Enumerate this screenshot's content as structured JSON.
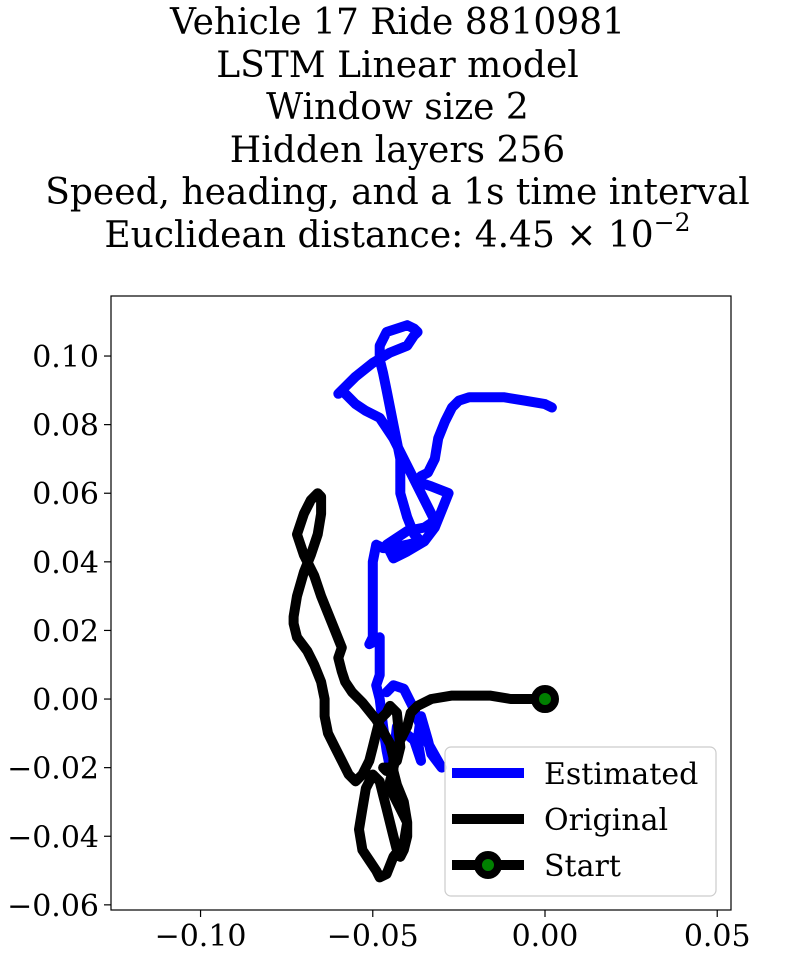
{
  "title": {
    "line1": "Vehicle 17 Ride 8810981",
    "line2": "LSTM Linear model",
    "line3": "Window size 2",
    "line4": "Hidden layers 256",
    "line5": "Speed, heading, and a 1s time interval",
    "line6_prefix": "Euclidean distance: 4.45 × 10",
    "line6_exponent": "−2"
  },
  "chart_data": {
    "type": "line",
    "xlim": [
      -0.126,
      0.054
    ],
    "ylim": [
      -0.0615,
      0.1175
    ],
    "xticks": [
      -0.1,
      -0.05,
      0.0,
      0.05
    ],
    "xtick_labels": [
      "−0.10",
      "−0.05",
      "0.00",
      "0.05"
    ],
    "yticks": [
      -0.06,
      -0.04,
      -0.02,
      0.0,
      0.02,
      0.04,
      0.06,
      0.08,
      0.1
    ],
    "ytick_labels": [
      "−0.06",
      "−0.04",
      "−0.02",
      "0.00",
      "0.02",
      "0.04",
      "0.06",
      "0.08",
      "0.10"
    ],
    "grid": false,
    "legend_position": "lower-right",
    "series": [
      {
        "name": "Estimated",
        "color": "#0000ff",
        "x": [
          0.002,
          0.0,
          -0.006,
          -0.012,
          -0.017,
          -0.022,
          -0.025,
          -0.027,
          -0.029,
          -0.031,
          -0.032,
          -0.034,
          -0.036,
          -0.037,
          -0.036,
          -0.033,
          -0.028,
          -0.03,
          -0.032,
          -0.035,
          -0.04,
          -0.044,
          -0.046,
          -0.04,
          -0.035,
          -0.032,
          -0.036,
          -0.04,
          -0.044,
          -0.048,
          -0.052,
          -0.055,
          -0.057,
          -0.059,
          -0.06,
          -0.058,
          -0.055,
          -0.05,
          -0.045,
          -0.04,
          -0.038,
          -0.037,
          -0.038,
          -0.04,
          -0.046,
          -0.048,
          -0.048,
          -0.047,
          -0.046,
          -0.044,
          -0.042,
          -0.042,
          -0.04,
          -0.038,
          -0.036,
          -0.04,
          -0.045,
          -0.047,
          -0.049,
          -0.05,
          -0.05,
          -0.05,
          -0.05,
          -0.051,
          -0.049,
          -0.048,
          -0.048,
          -0.048,
          -0.049,
          -0.048,
          -0.047,
          -0.046,
          -0.045,
          -0.044,
          -0.043,
          -0.038,
          -0.036,
          -0.037,
          -0.036,
          -0.034,
          -0.033,
          -0.03,
          -0.035,
          -0.038,
          -0.041,
          -0.044,
          -0.046
        ],
        "y": [
          0.085,
          0.086,
          0.087,
          0.088,
          0.088,
          0.088,
          0.087,
          0.085,
          0.081,
          0.076,
          0.07,
          0.066,
          0.065,
          0.064,
          0.063,
          0.062,
          0.06,
          0.055,
          0.05,
          0.046,
          0.043,
          0.041,
          0.045,
          0.049,
          0.05,
          0.052,
          0.06,
          0.068,
          0.076,
          0.082,
          0.084,
          0.086,
          0.088,
          0.09,
          0.089,
          0.091,
          0.094,
          0.098,
          0.101,
          0.103,
          0.106,
          0.107,
          0.108,
          0.109,
          0.107,
          0.103,
          0.099,
          0.095,
          0.09,
          0.08,
          0.07,
          0.06,
          0.053,
          0.048,
          0.046,
          0.045,
          0.044,
          0.044,
          0.045,
          0.04,
          0.03,
          0.024,
          0.018,
          0.016,
          0.017,
          0.018,
          0.012,
          0.007,
          0.004,
          0.0,
          -0.008,
          -0.015,
          -0.02,
          -0.017,
          -0.008,
          -0.012,
          -0.018,
          -0.012,
          -0.005,
          -0.012,
          -0.016,
          -0.02,
          -0.011,
          -0.003,
          0.003,
          0.004,
          0.002
        ]
      },
      {
        "name": "Original",
        "color": "#000000",
        "x": [
          0.0,
          -0.004,
          -0.01,
          -0.016,
          -0.021,
          -0.027,
          -0.033,
          -0.037,
          -0.039,
          -0.04,
          -0.042,
          -0.043,
          -0.044,
          -0.045,
          -0.044,
          -0.042,
          -0.04,
          -0.04,
          -0.041,
          -0.042,
          -0.043,
          -0.044,
          -0.045,
          -0.046,
          -0.047,
          -0.048,
          -0.05,
          -0.052,
          -0.053,
          -0.054,
          -0.053,
          -0.051,
          -0.049,
          -0.048,
          -0.046,
          -0.044,
          -0.041,
          -0.04,
          -0.041,
          -0.043,
          -0.044,
          -0.044,
          -0.045,
          -0.049,
          -0.053,
          -0.056,
          -0.058,
          -0.059,
          -0.06,
          -0.059,
          -0.061,
          -0.063,
          -0.065,
          -0.067,
          -0.07,
          -0.072,
          -0.07,
          -0.068,
          -0.066,
          -0.065,
          -0.065,
          -0.066,
          -0.068,
          -0.07,
          -0.072,
          -0.073,
          -0.073,
          -0.072,
          -0.069,
          -0.067,
          -0.065,
          -0.064,
          -0.064,
          -0.063,
          -0.061,
          -0.059,
          -0.057,
          -0.055,
          -0.053,
          -0.051,
          -0.05,
          -0.049,
          -0.048,
          -0.046,
          -0.045,
          -0.044,
          -0.043,
          -0.042,
          -0.043,
          -0.045,
          -0.047,
          -0.046
        ],
        "y": [
          0.0,
          0.0,
          0.0,
          0.001,
          0.001,
          0.001,
          0.0,
          -0.002,
          -0.004,
          -0.008,
          -0.012,
          -0.016,
          -0.02,
          -0.024,
          -0.028,
          -0.032,
          -0.036,
          -0.04,
          -0.044,
          -0.046,
          -0.044,
          -0.04,
          -0.036,
          -0.032,
          -0.028,
          -0.024,
          -0.022,
          -0.026,
          -0.032,
          -0.038,
          -0.044,
          -0.047,
          -0.05,
          -0.052,
          -0.051,
          -0.046,
          -0.042,
          -0.036,
          -0.03,
          -0.025,
          -0.021,
          -0.017,
          -0.013,
          -0.006,
          -0.001,
          0.002,
          0.005,
          0.008,
          0.012,
          0.015,
          0.02,
          0.025,
          0.03,
          0.036,
          0.042,
          0.048,
          0.054,
          0.058,
          0.06,
          0.059,
          0.054,
          0.048,
          0.042,
          0.037,
          0.03,
          0.024,
          0.022,
          0.018,
          0.014,
          0.01,
          0.005,
          0.0,
          -0.005,
          -0.01,
          -0.014,
          -0.018,
          -0.022,
          -0.024,
          -0.022,
          -0.018,
          -0.014,
          -0.01,
          -0.006,
          -0.004,
          -0.002,
          -0.003,
          -0.004,
          -0.014,
          -0.018,
          -0.02,
          -0.02,
          -0.021
        ]
      }
    ],
    "start": {
      "name": "Start",
      "x": 0.0,
      "y": 0.0,
      "marker_color": "#008000",
      "edge_color": "#000000"
    }
  }
}
